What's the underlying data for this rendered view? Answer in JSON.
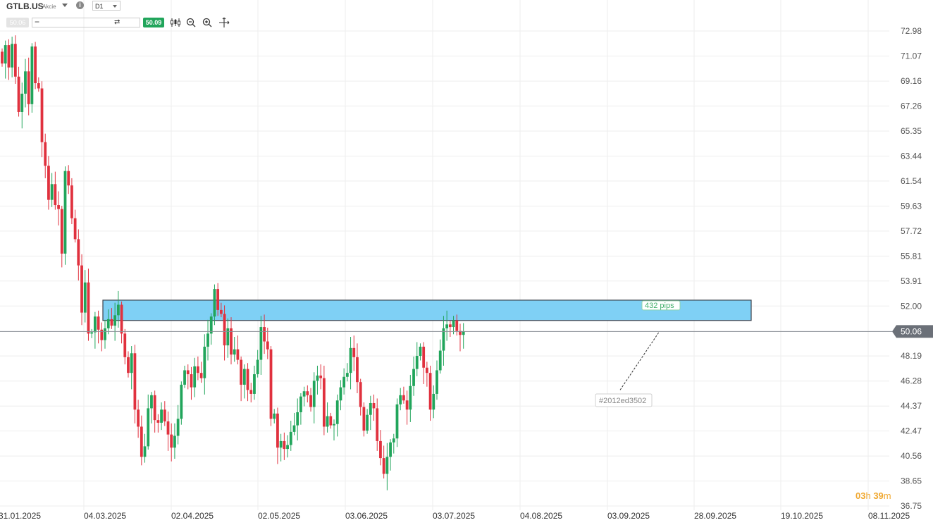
{
  "header": {
    "symbol": "GTLB.US",
    "symbol_type": "Akcie",
    "timeframe": "D1",
    "sell_price": "50.06",
    "buy_price": "50.09",
    "qty_minus": "−",
    "qty_plus": "+",
    "qty_swap": "⇄"
  },
  "tools": [
    "candles-icon",
    "zoom-out-icon",
    "zoom-in-icon",
    "crosshair-icon"
  ],
  "countdown": {
    "hours": "03",
    "h_unit": "h",
    "minutes": "39",
    "m_unit": "m"
  },
  "colors": {
    "up": "#21a55b",
    "down": "#e0313e",
    "zone_fill": "#7fd0f5",
    "zone_stroke": "#3a3f4a",
    "price_line": "#8a8f96"
  },
  "annotations": {
    "pips_label": "432 pips",
    "drawing_id": "#2012ed3502"
  },
  "chart_data": {
    "type": "candlestick",
    "title": "",
    "ylim": [
      36.75,
      73.5
    ],
    "y_ticks": [
      "72.98",
      "71.07",
      "69.16",
      "67.26",
      "65.35",
      "63.44",
      "61.54",
      "59.63",
      "57.72",
      "55.81",
      "53.91",
      "52.00",
      "50.06",
      "48.19",
      "46.28",
      "44.37",
      "42.47",
      "40.56",
      "38.65",
      "36.75"
    ],
    "x_ticks": [
      "31.01.2025",
      "04.03.2025",
      "02.04.2025",
      "02.05.2025",
      "03.06.2025",
      "03.07.2025",
      "04.08.2025",
      "03.09.2025",
      "28.09.2025",
      "19.10.2025",
      "08.11.2025"
    ],
    "current_price": 50.06,
    "resistance_zone": {
      "low": 50.9,
      "high": 52.45,
      "from": "04.03.2025",
      "to": "08.10.2025"
    },
    "trend_line": {
      "from_price": 45.6,
      "to_price": 50.0
    },
    "closes": [
      70.5,
      71.9,
      70.2,
      72.0,
      69.5,
      66.8,
      68.2,
      69.9,
      67.4,
      71.8,
      69.0,
      68.6,
      64.5,
      62.7,
      60.1,
      61.3,
      59.7,
      59.4,
      56.0,
      62.3,
      61.2,
      58.7,
      57.1,
      55.1,
      51.5,
      53.8,
      49.9,
      50.0,
      51.2,
      50.2,
      49.4,
      50.3,
      51.0,
      50.5,
      51.3,
      52.1,
      49.9,
      48.1,
      46.9,
      48.4,
      44.1,
      42.8,
      40.5,
      41.3,
      44.2,
      45.2,
      43.3,
      43.1,
      44.1,
      43.2,
      42.2,
      41.2,
      42.1,
      43.4,
      46.0,
      47.1,
      46.8,
      45.8,
      47.4,
      46.9,
      46.5,
      48.9,
      49.9,
      51.2,
      53.3,
      51.7,
      51.4,
      49.0,
      50.3,
      48.3,
      48.7,
      47.9,
      46.0,
      47.2,
      45.6,
      45.3,
      46.8,
      47.9,
      50.4,
      49.3,
      48.7,
      43.4,
      43.8,
      41.2,
      41.7,
      41.1,
      41.4,
      42.4,
      42.9,
      43.9,
      45.1,
      45.5,
      45.2,
      44.3,
      46.3,
      46.7,
      46.5,
      42.8,
      43.6,
      42.9,
      43.0,
      44.8,
      45.8,
      46.6,
      46.9,
      48.8,
      48.1,
      46.2,
      44.3,
      42.5,
      43.7,
      44.6,
      44.2,
      41.7,
      40.4,
      39.2,
      40.5,
      41.6,
      41.9,
      44.5,
      45.2,
      44.8,
      44.1,
      45.9,
      47.2,
      48.2,
      48.9,
      47.3,
      46.9,
      44.1,
      45.3,
      47.1,
      48.6,
      50.3,
      50.6,
      50.4,
      50.9,
      50.1,
      49.8,
      50.05
    ]
  }
}
